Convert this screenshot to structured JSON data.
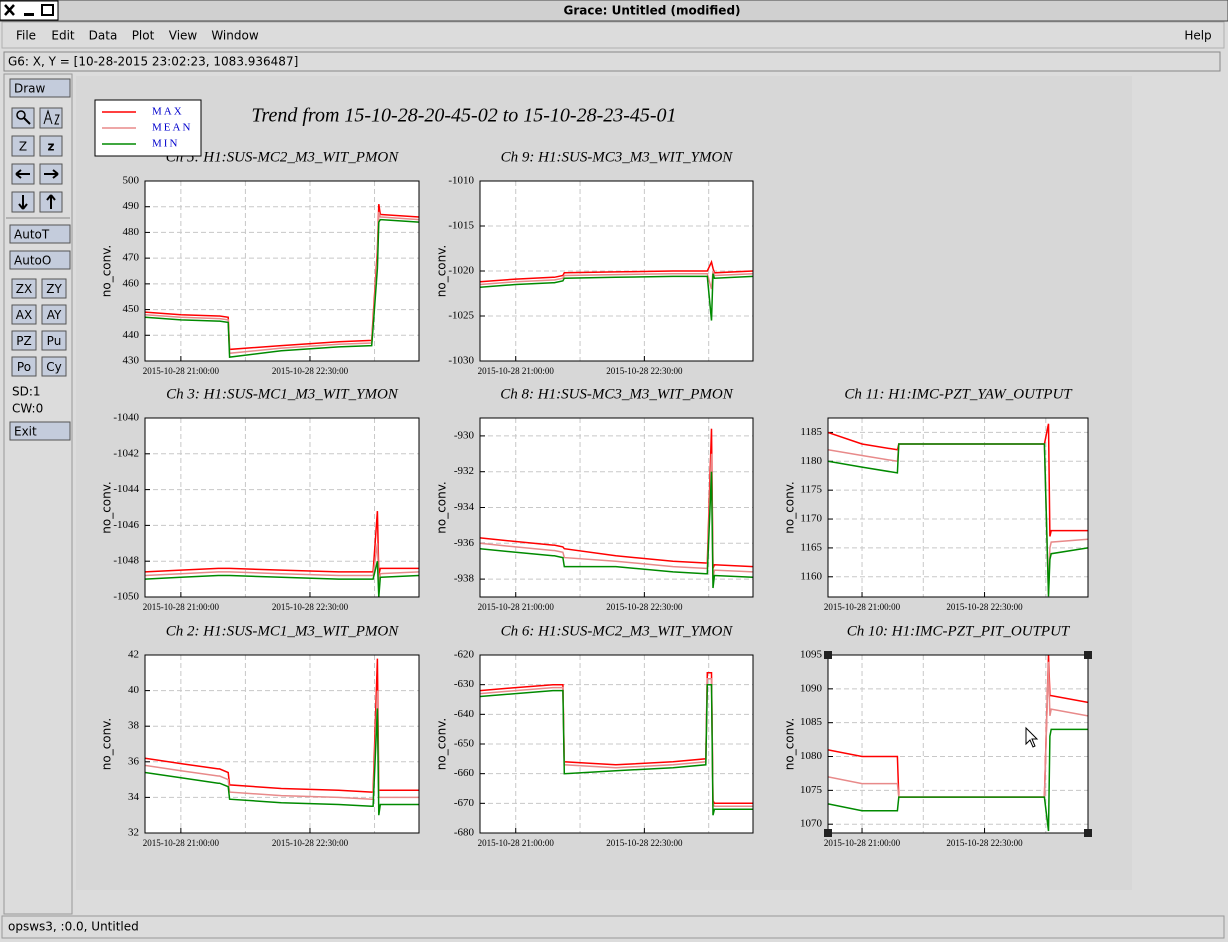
{
  "window": {
    "title": "Grace: Untitled (modified)"
  },
  "menu": [
    "File",
    "Edit",
    "Data",
    "Plot",
    "View",
    "Window"
  ],
  "help": "Help",
  "locator": "G6: X, Y = [10-28-2015 23:02:23, 1083.936487]",
  "toolbar": {
    "draw": "Draw",
    "icons": [
      "Z",
      "z"
    ],
    "auto": [
      "AutoT",
      "AutoO"
    ],
    "buttons": [
      "ZX",
      "ZY",
      "AX",
      "AY",
      "PZ",
      "Pu",
      "Po",
      "Cy"
    ],
    "status": [
      "SD:1",
      "CW:0"
    ],
    "exit": "Exit"
  },
  "footer": "opsws3, :0.0, Untitled",
  "figure_title": "Trend from 15-10-28-20-45-02 to 15-10-28-23-45-01",
  "legend": [
    {
      "name": "MAX",
      "color": "#ff0000"
    },
    {
      "name": "MEAN",
      "color": "#e88a8a"
    },
    {
      "name": "MIN",
      "color": "#008a00"
    }
  ],
  "x": [
    -25,
    0,
    26,
    27,
    33,
    34,
    70,
    110,
    133,
    134,
    137,
    138,
    139,
    166
  ],
  "xlim": [
    -25,
    166
  ],
  "xticks": [
    {
      "value": 0,
      "label": "2015-10-28 21:00:00"
    },
    {
      "value": 90,
      "label": "2015-10-28 22:30:00"
    }
  ],
  "xgrid": [
    0,
    45,
    90,
    135
  ],
  "plots": [
    {
      "title": "Ch 5: H1:SUS-MC2_M3_WIT_PMON",
      "ylabel": "no_conv.",
      "ylim": [
        430,
        500
      ],
      "yticks": [
        430,
        440,
        450,
        460,
        470,
        480,
        490,
        500
      ],
      "series": [
        {
          "values": [
            449,
            448,
            447.5,
            447.5,
            447,
            434.5,
            436,
            437.5,
            438,
            447,
            473,
            491,
            487,
            486
          ]
        },
        {
          "values": [
            448,
            447,
            446.5,
            446.5,
            446,
            433,
            435,
            436.5,
            437,
            445,
            470,
            488,
            486,
            485
          ]
        },
        {
          "values": [
            447,
            446,
            445.5,
            445.5,
            445,
            431.5,
            434,
            435.5,
            436,
            443,
            466,
            484,
            485,
            484
          ]
        }
      ]
    },
    {
      "title": "Ch 9: H1:SUS-MC3_M3_WIT_YMON",
      "ylabel": "no_conv.",
      "ylim": [
        -1030,
        -1010
      ],
      "yticks": [
        -1030,
        -1025,
        -1020,
        -1015,
        -1010
      ],
      "series": [
        {
          "values": [
            -1021.2,
            -1020.9,
            -1020.7,
            -1020.7,
            -1020.5,
            -1020.2,
            -1020.1,
            -1020,
            -1020,
            -1020,
            -1019,
            -1019.7,
            -1020.2,
            -1020
          ]
        },
        {
          "values": [
            -1021.5,
            -1021.2,
            -1021,
            -1021,
            -1020.8,
            -1020.5,
            -1020.4,
            -1020.3,
            -1020.3,
            -1020.3,
            -1022,
            -1020,
            -1020.5,
            -1020.3
          ]
        },
        {
          "values": [
            -1021.8,
            -1021.5,
            -1021.3,
            -1021.3,
            -1021.1,
            -1020.8,
            -1020.7,
            -1020.6,
            -1020.6,
            -1020.6,
            -1025.5,
            -1020.3,
            -1020.8,
            -1020.6
          ]
        }
      ]
    },
    {
      "title": "Ch 3: H1:SUS-MC1_M3_WIT_YMON",
      "ylabel": "no_conv.",
      "ylim": [
        -1050,
        -1040
      ],
      "yticks": [
        -1050,
        -1048,
        -1046,
        -1044,
        -1042,
        -1040
      ],
      "series": [
        {
          "values": [
            -1048.6,
            -1048.5,
            -1048.4,
            -1048.4,
            -1048.4,
            -1048.4,
            -1048.5,
            -1048.6,
            -1048.6,
            -1048.6,
            -1045.2,
            -1048.8,
            -1048.4,
            -1048.4
          ]
        },
        {
          "values": [
            -1048.8,
            -1048.7,
            -1048.6,
            -1048.6,
            -1048.6,
            -1048.6,
            -1048.7,
            -1048.8,
            -1048.8,
            -1048.8,
            -1047,
            -1049.5,
            -1048.7,
            -1048.6
          ]
        },
        {
          "values": [
            -1049,
            -1048.9,
            -1048.8,
            -1048.8,
            -1048.8,
            -1048.8,
            -1048.9,
            -1049,
            -1049,
            -1049,
            -1048,
            -1050,
            -1048.9,
            -1048.8
          ]
        }
      ]
    },
    {
      "title": "Ch 8: H1:SUS-MC3_M3_WIT_PMON",
      "ylabel": "no_conv.",
      "ylim": [
        -939,
        -929
      ],
      "yticks": [
        -938,
        -936,
        -934,
        -932,
        -930
      ],
      "series": [
        {
          "values": [
            -935.7,
            -935.9,
            -936.1,
            -936.1,
            -936.2,
            -936.3,
            -936.7,
            -937,
            -937.1,
            -937.1,
            -929.6,
            -937.4,
            -937.2,
            -937.3
          ]
        },
        {
          "values": [
            -936,
            -936.2,
            -936.4,
            -936.4,
            -936.5,
            -936.8,
            -937,
            -937.3,
            -937.4,
            -937.4,
            -931,
            -938,
            -937.5,
            -937.6
          ]
        },
        {
          "values": [
            -936.3,
            -936.5,
            -936.7,
            -936.7,
            -936.8,
            -937.3,
            -937.3,
            -937.6,
            -937.7,
            -937.7,
            -932,
            -938.5,
            -937.8,
            -937.9
          ]
        }
      ]
    },
    {
      "title": "Ch 11: H1:IMC-PZT_YAW_OUTPUT",
      "ylabel": "no_conv.",
      "ylim": [
        1156.5,
        1187.5
      ],
      "yticks": [
        1160,
        1165,
        1170,
        1175,
        1180,
        1185
      ],
      "series": [
        {
          "values": [
            1185,
            1183,
            1182,
            1183,
            1183,
            1183,
            1183,
            1183,
            1183,
            1183,
            1186.5,
            1167,
            1168,
            1168
          ]
        },
        {
          "values": [
            1182,
            1181,
            1180,
            1183,
            1183,
            1183,
            1183,
            1183,
            1183,
            1183,
            1157,
            1165,
            1166,
            1166.5
          ]
        },
        {
          "values": [
            1180,
            1179,
            1178,
            1183,
            1183,
            1183,
            1183,
            1183,
            1183,
            1183,
            1156.6,
            1163,
            1164,
            1165
          ]
        }
      ]
    },
    {
      "title": "Ch 2: H1:SUS-MC1_M3_WIT_PMON",
      "ylabel": "no_conv.",
      "ylim": [
        32,
        42
      ],
      "yticks": [
        32,
        34,
        36,
        38,
        40,
        42
      ],
      "series": [
        {
          "values": [
            36.2,
            35.9,
            35.6,
            35.6,
            35.4,
            34.7,
            34.5,
            34.4,
            34.3,
            34.3,
            41.8,
            34.4,
            34.4,
            34.4
          ]
        },
        {
          "values": [
            35.8,
            35.5,
            35.2,
            35.2,
            35,
            34.3,
            34.1,
            34,
            33.9,
            33.9,
            40,
            34,
            34,
            34
          ]
        },
        {
          "values": [
            35.4,
            35.1,
            34.8,
            34.8,
            34.6,
            33.9,
            33.7,
            33.6,
            33.5,
            33.5,
            39,
            33,
            33.6,
            33.6
          ]
        }
      ]
    },
    {
      "title": "Ch 6: H1:SUS-MC2_M3_WIT_YMON",
      "ylabel": "no_conv.",
      "ylim": [
        -680,
        -620
      ],
      "yticks": [
        -680,
        -670,
        -660,
        -650,
        -640,
        -630,
        -620
      ],
      "series": [
        {
          "values": [
            -632,
            -631,
            -630,
            -630,
            -630,
            -656,
            -657,
            -656,
            -655,
            -626,
            -626,
            -669,
            -670,
            -670
          ]
        },
        {
          "values": [
            -633,
            -632,
            -631,
            -631,
            -631,
            -657,
            -658,
            -657,
            -656,
            -628,
            -628,
            -670,
            -671,
            -671
          ]
        },
        {
          "values": [
            -634,
            -633,
            -632,
            -632,
            -632,
            -660,
            -659,
            -658,
            -657,
            -630,
            -630,
            -674,
            -672,
            -672
          ]
        }
      ]
    },
    {
      "title": "Ch 10: H1:IMC-PZT_PIT_OUTPUT",
      "ylabel": "no_conv.",
      "ylim": [
        1068.7,
        1095
      ],
      "yticks": [
        1070,
        1075,
        1080,
        1085,
        1090,
        1095
      ],
      "series": [
        {
          "values": [
            1081,
            1080,
            1080,
            1074,
            1074,
            1074,
            1074,
            1074,
            1074,
            1074,
            1095,
            1089,
            1089,
            1088
          ]
        },
        {
          "values": [
            1077,
            1076,
            1076,
            1074,
            1074,
            1074,
            1074,
            1074,
            1074,
            1074,
            1094,
            1086,
            1087,
            1086
          ]
        },
        {
          "values": [
            1073,
            1072,
            1072,
            1074,
            1074,
            1074,
            1074,
            1074,
            1074,
            1074,
            1069,
            1083,
            1084,
            1084
          ]
        }
      ]
    }
  ]
}
